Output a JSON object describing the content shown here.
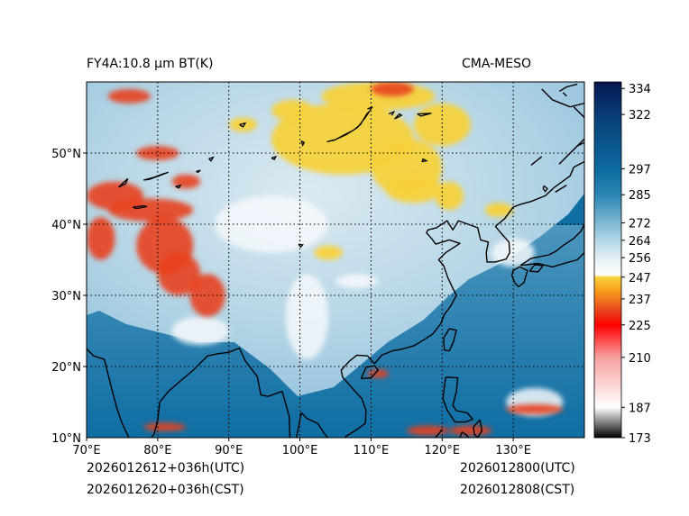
{
  "header": {
    "left_title": "FY4A:10.8 µm BT(K)",
    "right_title": "CMA-MESO"
  },
  "footer": {
    "init_utc": "2026012612+036h(UTC)",
    "init_cst": "2026012620+036h(CST)",
    "valid_utc": "2026012800(UTC)",
    "valid_cst": "2026012808(CST)"
  },
  "map": {
    "projection": "PlateCarree",
    "lon_range": [
      70,
      140
    ],
    "lat_range": [
      10,
      60
    ],
    "lon_ticks": [
      70,
      80,
      90,
      100,
      110,
      120,
      130
    ],
    "lon_labels": [
      "70°E",
      "80°E",
      "90°E",
      "100°E",
      "110°E",
      "120°E",
      "130°E"
    ],
    "lat_ticks": [
      20,
      30,
      40,
      50
    ],
    "lat_labels": [
      "20°N",
      "30°N",
      "40°N",
      "50°N"
    ],
    "lat_edge_label": "10°N",
    "gridlines": "dotted"
  },
  "colorbar": {
    "range": [
      173,
      337
    ],
    "ticks": [
      334,
      322,
      297,
      285,
      272,
      264,
      256,
      247,
      237,
      225,
      210,
      187,
      173
    ],
    "stops": [
      {
        "v": 173,
        "c": "#000000"
      },
      {
        "v": 187,
        "c": "#ffffff"
      },
      {
        "v": 210,
        "c": "#f8a0a0"
      },
      {
        "v": 225,
        "c": "#ff0000"
      },
      {
        "v": 231,
        "c": "#e8401c"
      },
      {
        "v": 241,
        "c": "#f9a01d"
      },
      {
        "v": 247,
        "c": "#f7d23c"
      },
      {
        "v": 248,
        "c": "#ffffff"
      },
      {
        "v": 256,
        "c": "#e2eef4"
      },
      {
        "v": 264,
        "c": "#b3d6e6"
      },
      {
        "v": 272,
        "c": "#7fb7d3"
      },
      {
        "v": 285,
        "c": "#2a86b4"
      },
      {
        "v": 297,
        "c": "#0c6a9e"
      },
      {
        "v": 322,
        "c": "#083d78"
      },
      {
        "v": 337,
        "c": "#05174e"
      }
    ]
  },
  "colors": {
    "ocean": "#0f6ea3",
    "cloud_warm": "#f7d23c",
    "cloud_cold": "#e8401c",
    "coast": "#000000"
  },
  "features": {
    "coastlines": [
      [
        [
          70,
          22.5
        ],
        [
          71,
          21.5
        ],
        [
          72.5,
          21
        ],
        [
          73,
          19
        ],
        [
          73.5,
          17
        ],
        [
          74.3,
          14
        ],
        [
          75,
          12
        ],
        [
          76.2,
          9.5
        ],
        [
          77.5,
          8.1
        ],
        [
          78.3,
          9
        ],
        [
          79.5,
          10.5
        ],
        [
          80,
          12.5
        ],
        [
          80.3,
          15
        ],
        [
          81.5,
          16.5
        ],
        [
          83,
          17.8
        ],
        [
          85,
          19.5
        ],
        [
          87,
          21.5
        ],
        [
          88.5,
          21.8
        ],
        [
          90,
          22
        ],
        [
          91.5,
          22.6
        ],
        [
          92.3,
          20.8
        ],
        [
          94,
          18.6
        ],
        [
          94.5,
          16
        ],
        [
          95.5,
          15.8
        ],
        [
          97.5,
          16.5
        ],
        [
          98.5,
          13
        ],
        [
          98.6,
          10
        ],
        [
          98.5,
          9
        ]
      ],
      [
        [
          99.5,
          10
        ],
        [
          100.2,
          13.5
        ],
        [
          101,
          12.7
        ],
        [
          102.5,
          12
        ],
        [
          103.5,
          10.5
        ],
        [
          105,
          8.7
        ],
        [
          106.5,
          10.2
        ],
        [
          107.8,
          11
        ],
        [
          109.2,
          12
        ],
        [
          109.3,
          13.8
        ],
        [
          108.7,
          15.5
        ],
        [
          107.5,
          16.8
        ],
        [
          106,
          18.5
        ],
        [
          105.8,
          19.5
        ],
        [
          107,
          20.8
        ],
        [
          108,
          21.6
        ],
        [
          109.5,
          21.5
        ],
        [
          110.5,
          20.4
        ],
        [
          111.5,
          21.6
        ],
        [
          113,
          22.2
        ],
        [
          114.2,
          22.4
        ],
        [
          116,
          22.9
        ],
        [
          117.5,
          23.8
        ],
        [
          118.7,
          24.6
        ],
        [
          119.8,
          26
        ],
        [
          120.3,
          27.3
        ],
        [
          121.2,
          28.5
        ],
        [
          122,
          30
        ],
        [
          121.5,
          31
        ],
        [
          120.8,
          32.5
        ],
        [
          120.2,
          34.2
        ],
        [
          119.5,
          35
        ],
        [
          120.5,
          36
        ],
        [
          122.5,
          37.3
        ],
        [
          121,
          37.8
        ],
        [
          119.1,
          37.2
        ],
        [
          118.5,
          38
        ],
        [
          117.8,
          38.8
        ],
        [
          118,
          39.2
        ],
        [
          119.2,
          39.5
        ],
        [
          120.7,
          40.5
        ],
        [
          121.5,
          39.2
        ],
        [
          122.3,
          40.5
        ],
        [
          124.2,
          39.8
        ],
        [
          125,
          39.5
        ],
        [
          125.4,
          37.8
        ],
        [
          126.5,
          37.5
        ],
        [
          126.2,
          36
        ],
        [
          126.3,
          34.7
        ],
        [
          127.5,
          34.7
        ],
        [
          129,
          35.1
        ],
        [
          129.5,
          36
        ],
        [
          129.4,
          37.5
        ],
        [
          128.5,
          38.5
        ],
        [
          127.5,
          39.7
        ],
        [
          128.8,
          40.8
        ],
        [
          130,
          42.4
        ],
        [
          131,
          42.8
        ],
        [
          132.5,
          43.2
        ],
        [
          134.5,
          44
        ],
        [
          135.8,
          45.2
        ],
        [
          138,
          46.8
        ],
        [
          138.5,
          48
        ],
        [
          140,
          48.8
        ]
      ],
      [
        [
          130.7,
          31.2
        ],
        [
          131.5,
          31.8
        ],
        [
          132,
          33.5
        ],
        [
          130.9,
          34
        ],
        [
          130,
          33.5
        ],
        [
          129.8,
          32.8
        ],
        [
          130.2,
          31.8
        ],
        [
          130.7,
          31.2
        ]
      ],
      [
        [
          132.3,
          33.4
        ],
        [
          133.5,
          33.3
        ],
        [
          134.2,
          34.2
        ],
        [
          133,
          34.3
        ],
        [
          132.3,
          33.4
        ]
      ],
      [
        [
          131,
          34.2
        ],
        [
          132.5,
          35.2
        ],
        [
          135,
          35.7
        ],
        [
          136,
          36.2
        ],
        [
          137,
          37
        ],
        [
          138.5,
          38
        ],
        [
          139.5,
          39
        ],
        [
          140,
          40
        ],
        [
          140,
          36
        ],
        [
          139,
          35
        ],
        [
          137.5,
          34.6
        ],
        [
          135.5,
          34
        ],
        [
          133.5,
          34.5
        ],
        [
          131,
          34.2
        ]
      ],
      [
        [
          120.3,
          22.3
        ],
        [
          121,
          22.2
        ],
        [
          121.6,
          23.5
        ],
        [
          122,
          25.1
        ],
        [
          121,
          25.3
        ],
        [
          120.2,
          24
        ],
        [
          120.3,
          22.3
        ]
      ],
      [
        [
          108.6,
          18.3
        ],
        [
          110,
          18.4
        ],
        [
          111,
          19.5
        ],
        [
          110.5,
          20.1
        ],
        [
          109.3,
          19.9
        ],
        [
          108.6,
          18.3
        ]
      ],
      [
        [
          120.5,
          18.5
        ],
        [
          122.2,
          18.4
        ],
        [
          122,
          16.5
        ],
        [
          121.5,
          14.5
        ],
        [
          122,
          13.8
        ],
        [
          123.5,
          13.5
        ],
        [
          124.3,
          12.6
        ],
        [
          123.3,
          12.2
        ],
        [
          121.8,
          12.2
        ],
        [
          120.7,
          13.9
        ],
        [
          120.1,
          15.5
        ],
        [
          120.5,
          18.5
        ]
      ],
      [
        [
          125.3,
          12.5
        ],
        [
          125.6,
          11
        ],
        [
          125,
          10
        ],
        [
          124.5,
          10.5
        ],
        [
          124.4,
          11.5
        ],
        [
          125.3,
          12.5
        ]
      ],
      [
        [
          122.8,
          10.8
        ],
        [
          123.5,
          10.3
        ],
        [
          124,
          9.5
        ],
        [
          123,
          9.2
        ],
        [
          122.5,
          10
        ],
        [
          122.8,
          10.8
        ]
      ],
      [
        [
          119.5,
          10.5
        ],
        [
          118.5,
          9.5
        ],
        [
          117.5,
          8.5
        ],
        [
          117.8,
          9
        ],
        [
          118.5,
          10
        ]
      ],
      [
        [
          79.9,
          9.8
        ],
        [
          80.9,
          9
        ],
        [
          81.8,
          7.3
        ],
        [
          81.2,
          6.2
        ],
        [
          80.1,
          6.1
        ],
        [
          79.8,
          7.8
        ],
        [
          79.9,
          9.8
        ]
      ],
      [
        [
          119.5,
          10.5
        ],
        [
          120,
          11.2
        ]
      ],
      [
        [
          135.9,
          44.5
        ],
        [
          137.5,
          45.5
        ]
      ],
      [
        [
          140,
          51.5
        ],
        [
          139,
          51
        ],
        [
          137.5,
          49.5
        ],
        [
          136.5,
          48.5
        ],
        [
          140,
          52
        ]
      ],
      [
        [
          134,
          59
        ],
        [
          135.5,
          57.5
        ],
        [
          138,
          56.5
        ],
        [
          140,
          57
        ]
      ],
      [
        [
          137,
          58.5
        ],
        [
          137.5,
          58
        ]
      ],
      [
        [
          132.5,
          48.3
        ],
        [
          134,
          49.5
        ]
      ],
      [
        [
          138.5,
          56.5
        ],
        [
          140,
          55
        ]
      ],
      [
        [
          136.5,
          58.7
        ],
        [
          137.5,
          59.3
        ],
        [
          139,
          59.7
        ]
      ]
    ],
    "lakes": [
      [
        [
          103.8,
          51.6
        ],
        [
          104.8,
          51.8
        ],
        [
          106.3,
          52.6
        ],
        [
          107.5,
          53.2
        ],
        [
          108.5,
          54
        ],
        [
          109.4,
          55.5
        ],
        [
          109.8,
          55.9
        ],
        [
          109.2,
          55
        ],
        [
          108.1,
          53.6
        ],
        [
          106.5,
          52.6
        ],
        [
          105,
          51.9
        ],
        [
          103.8,
          51.6
        ]
      ],
      [
        [
          78,
          46.2
        ],
        [
          79.5,
          46.6
        ],
        [
          80.5,
          47
        ],
        [
          81.5,
          47.3
        ],
        [
          80.2,
          46.8
        ],
        [
          78.8,
          46.3
        ],
        [
          78,
          46.2
        ]
      ],
      [
        [
          76.5,
          42.4
        ],
        [
          78,
          42.6
        ],
        [
          78.5,
          42.5
        ],
        [
          77,
          42.2
        ],
        [
          76.5,
          42.4
        ]
      ],
      [
        [
          99.8,
          37.2
        ],
        [
          100.4,
          37.1
        ],
        [
          100.1,
          36.8
        ],
        [
          99.8,
          37.2
        ]
      ],
      [
        [
          134.3,
          45.4
        ],
        [
          134.8,
          45
        ],
        [
          134.5,
          44.6
        ],
        [
          134.2,
          45
        ],
        [
          134.3,
          45.4
        ]
      ],
      [
        [
          100.2,
          51.7
        ],
        [
          100.6,
          51.5
        ],
        [
          100.4,
          51.1
        ],
        [
          100.2,
          51.7
        ]
      ],
      [
        [
          96,
          49.3
        ],
        [
          96.6,
          49.5
        ],
        [
          96.4,
          49.1
        ],
        [
          96,
          49.3
        ]
      ],
      [
        [
          87.2,
          49.2
        ],
        [
          87.8,
          49.4
        ],
        [
          87.5,
          48.9
        ],
        [
          87.2,
          49.2
        ]
      ],
      [
        [
          82.5,
          45.3
        ],
        [
          83.2,
          45.5
        ],
        [
          83,
          45.1
        ],
        [
          82.5,
          45.3
        ]
      ],
      [
        [
          74.5,
          45.2
        ],
        [
          75.8,
          46.4
        ],
        [
          75.5,
          45.7
        ],
        [
          74.5,
          45.2
        ]
      ],
      [
        [
          85.4,
          47.4
        ],
        [
          86,
          47.6
        ],
        [
          85.7,
          47.3
        ],
        [
          85.4,
          47.4
        ]
      ],
      [
        [
          91.5,
          54
        ],
        [
          92.3,
          54.2
        ],
        [
          92,
          53.7
        ],
        [
          91.5,
          54
        ]
      ],
      [
        [
          116.5,
          55.5
        ],
        [
          118.5,
          55.6
        ],
        [
          117,
          55.2
        ],
        [
          116.5,
          55.5
        ]
      ],
      [
        [
          109.5,
          56.2
        ],
        [
          110.2,
          56.5
        ],
        [
          109.8,
          56
        ]
      ],
      [
        [
          113.3,
          54.8
        ],
        [
          114,
          55.5
        ],
        [
          114.3,
          55.3
        ],
        [
          113.3,
          54.8
        ]
      ],
      [
        [
          117.3,
          49.2
        ],
        [
          117.8,
          48.9
        ],
        [
          117.2,
          48.8
        ],
        [
          117.3,
          49.2
        ]
      ],
      [
        [
          112.5,
          55.5
        ],
        [
          113.2,
          55.8
        ],
        [
          112.9,
          55.3
        ]
      ]
    ],
    "clouds_warm": [
      {
        "lon": 106,
        "lat": 52,
        "rx": 10,
        "ry": 5
      },
      {
        "lon": 111,
        "lat": 58,
        "rx": 8,
        "ry": 2
      },
      {
        "lon": 115,
        "lat": 48,
        "rx": 5,
        "ry": 4
      },
      {
        "lon": 116,
        "lat": 45,
        "rx": 4,
        "ry": 2
      },
      {
        "lon": 120,
        "lat": 54,
        "rx": 4,
        "ry": 3
      },
      {
        "lon": 99,
        "lat": 56,
        "rx": 3,
        "ry": 1.5
      },
      {
        "lon": 92,
        "lat": 54,
        "rx": 2,
        "ry": 1
      },
      {
        "lon": 121,
        "lat": 44,
        "rx": 2,
        "ry": 2
      },
      {
        "lon": 104,
        "lat": 36,
        "rx": 2,
        "ry": 1
      },
      {
        "lon": 128,
        "lat": 42,
        "rx": 2,
        "ry": 1
      }
    ],
    "clouds_cold": [
      {
        "lon": 74,
        "lat": 44,
        "rx": 4,
        "ry": 2
      },
      {
        "lon": 79,
        "lat": 42,
        "rx": 6,
        "ry": 1.6
      },
      {
        "lon": 81,
        "lat": 37,
        "rx": 4,
        "ry": 4
      },
      {
        "lon": 83,
        "lat": 33,
        "rx": 3,
        "ry": 3
      },
      {
        "lon": 87,
        "lat": 30,
        "rx": 2.5,
        "ry": 3
      },
      {
        "lon": 72,
        "lat": 38,
        "rx": 2,
        "ry": 3
      },
      {
        "lon": 84,
        "lat": 46,
        "rx": 2,
        "ry": 1
      },
      {
        "lon": 80,
        "lat": 50,
        "rx": 3,
        "ry": 1
      },
      {
        "lon": 76,
        "lat": 58,
        "rx": 3,
        "ry": 1
      },
      {
        "lon": 113,
        "lat": 59,
        "rx": 3,
        "ry": 1
      },
      {
        "lon": 111,
        "lat": 19,
        "rx": 1.5,
        "ry": 0.6
      },
      {
        "lon": 118,
        "lat": 11,
        "rx": 3,
        "ry": 0.7
      },
      {
        "lon": 133,
        "lat": 14,
        "rx": 4,
        "ry": 0.7
      },
      {
        "lon": 124,
        "lat": 11,
        "rx": 3,
        "ry": 0.7
      },
      {
        "lon": 81,
        "lat": 11.5,
        "rx": 3,
        "ry": 0.6
      }
    ],
    "clouds_white": [
      {
        "lon": 96,
        "lat": 40,
        "rx": 8,
        "ry": 4
      },
      {
        "lon": 86,
        "lat": 25,
        "rx": 4,
        "ry": 2
      },
      {
        "lon": 101,
        "lat": 27,
        "rx": 3,
        "ry": 6
      },
      {
        "lon": 130,
        "lat": 36,
        "rx": 3,
        "ry": 2
      },
      {
        "lon": 133,
        "lat": 15,
        "rx": 4,
        "ry": 2
      },
      {
        "lon": 108,
        "lat": 32,
        "rx": 3,
        "ry": 1
      }
    ]
  }
}
